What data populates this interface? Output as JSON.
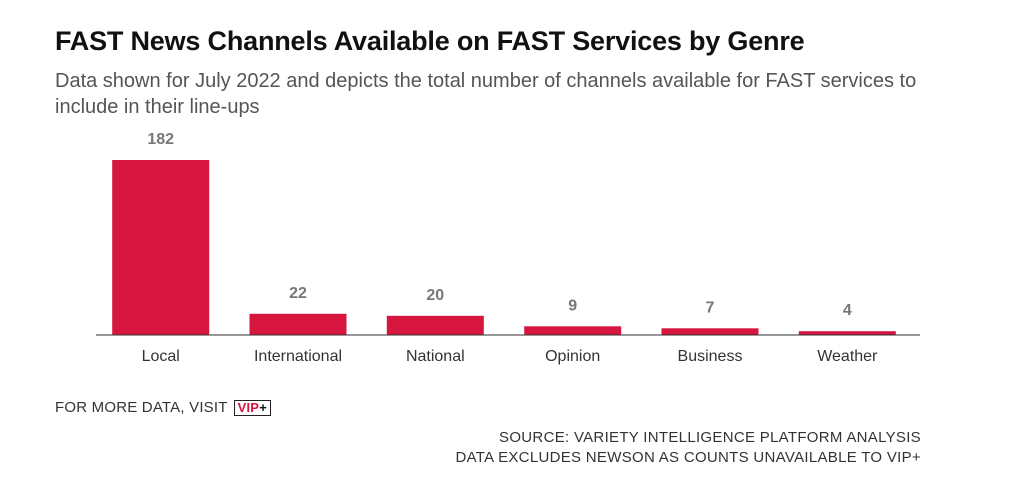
{
  "header": {
    "title": "FAST News Channels Available on FAST Services by Genre",
    "subtitle": "Data shown for July 2022 and depicts the total number of channels available for FAST services to include in their line-ups"
  },
  "chart_data": {
    "type": "bar",
    "categories": [
      "Local",
      "International",
      "National",
      "Opinion",
      "Business",
      "Weather"
    ],
    "values": [
      182,
      22,
      20,
      9,
      7,
      4
    ],
    "ylim": [
      0,
      182
    ],
    "grid": false,
    "legend": "none",
    "colors": {
      "bar": "#d6163f",
      "value_label": "#777777",
      "axis": "#333333"
    }
  },
  "cta": {
    "text": "FOR MORE DATA, VISIT",
    "badge_vip": "VIP",
    "badge_plus": "+"
  },
  "footer": {
    "source": "SOURCE: VARIETY INTELLIGENCE PLATFORM ANALYSIS",
    "note": "DATA EXCLUDES NEWSON AS COUNTS UNAVAILABLE TO VIP+"
  }
}
